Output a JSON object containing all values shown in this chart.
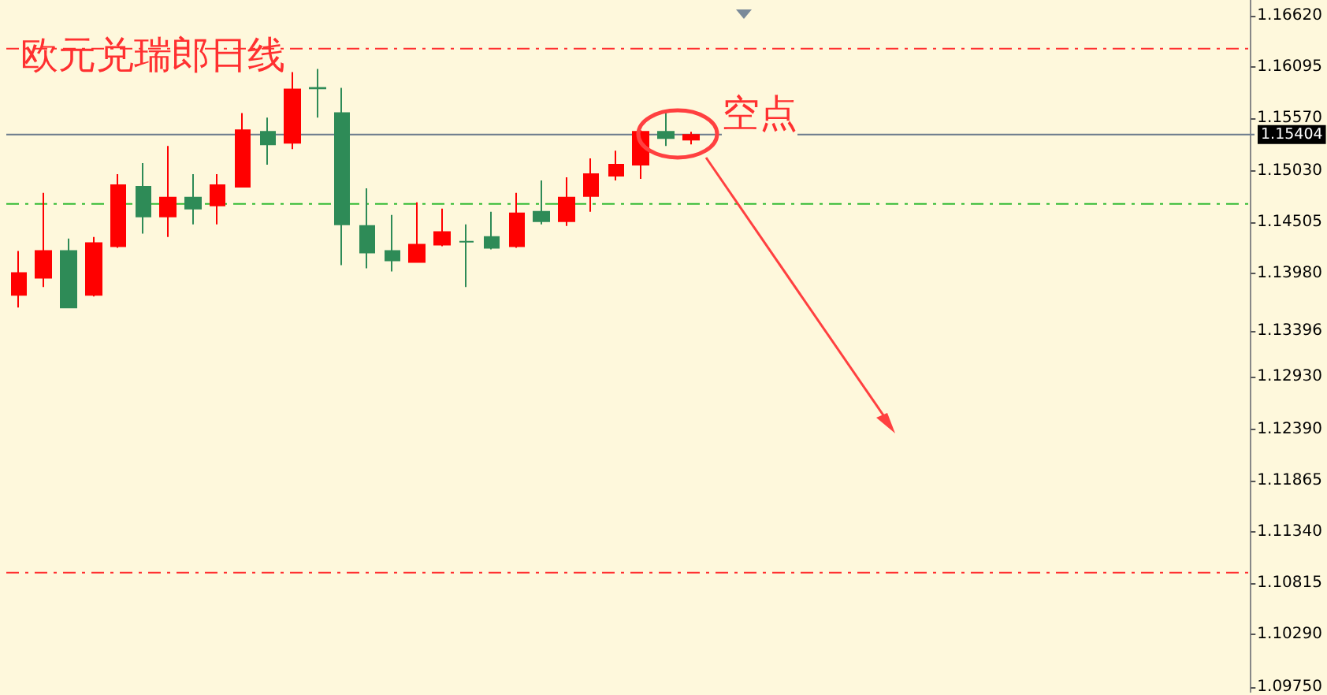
{
  "chart_data": {
    "type": "candlestick",
    "title": "欧元兑瑞郎日线",
    "annotations": [
      "空点"
    ],
    "categories": [
      null,
      null,
      null,
      null,
      null,
      null,
      null,
      null,
      null,
      null,
      null,
      null,
      null,
      null,
      null,
      null,
      null,
      null,
      null,
      null,
      null,
      null,
      null,
      null,
      null,
      null,
      null,
      null,
      null,
      null,
      null,
      null,
      null,
      null,
      null,
      null,
      null,
      null,
      null,
      null,
      null,
      null,
      null,
      null,
      null,
      null,
      null,
      null,
      null,
      null
    ],
    "ohlc": [
      [
        1.13763,
        1.14212,
        1.13634,
        1.13987
      ],
      [
        1.13939,
        1.14806,
        1.13843,
        1.14212
      ],
      [
        1.14212,
        1.1434,
        1.13634,
        1.13634
      ],
      [
        1.13763,
        1.14356,
        1.13747,
        1.14292
      ],
      [
        1.1426,
        1.14998,
        1.14244,
        1.14886
      ],
      [
        1.1487,
        1.15111,
        1.14389,
        1.14565
      ],
      [
        1.14565,
        1.15287,
        1.14356,
        1.14758
      ],
      [
        1.14758,
        1.14998,
        1.14485,
        1.14645
      ],
      [
        1.14677,
        1.14998,
        1.14485,
        1.14886
      ],
      [
        1.1487,
        1.15624,
        1.1487,
        1.15448
      ],
      [
        1.15432,
        1.15576,
        1.15095,
        1.15303
      ],
      [
        1.15319,
        1.16042,
        1.15255,
        1.15865
      ],
      [
        1.15881,
        1.16074,
        1.15576,
        1.15876
      ],
      [
        1.15624,
        1.15881,
        1.14068,
        1.14485
      ],
      [
        1.14469,
        1.14854,
        1.14035,
        1.14196
      ],
      [
        1.14212,
        1.14581,
        1.14003,
        1.14116
      ],
      [
        1.141,
        1.1471,
        1.141,
        1.14276
      ],
      [
        1.14276,
        1.14645,
        1.1426,
        1.14405
      ],
      [
        1.14308,
        1.14485,
        1.13843,
        1.14308
      ],
      [
        1.14356,
        1.14613,
        1.14228,
        1.14244
      ],
      [
        1.1426,
        1.14806,
        1.14244,
        1.14597
      ],
      [
        1.14613,
        1.14934,
        1.14485,
        1.14517
      ],
      [
        1.14517,
        1.14966,
        1.14469,
        1.14758
      ],
      [
        1.14774,
        1.15159,
        1.14613,
        1.14998
      ],
      [
        1.14982,
        1.15239,
        1.14934,
        1.15095
      ],
      [
        1.15095,
        1.15448,
        1.1495,
        1.15432
      ],
      [
        1.15432,
        1.1564,
        1.15287,
        1.15368
      ],
      [
        1.15352,
        1.15432,
        1.15303,
        1.154
      ],
      null,
      null,
      null,
      null,
      null,
      null,
      null,
      null,
      null,
      null,
      null,
      null,
      null,
      null,
      null,
      null,
      null,
      null,
      null,
      null,
      null,
      null
    ],
    "colors": [
      "#ff0000",
      "#ff0000",
      "#2e8b57",
      "#ff0000",
      "#ff0000",
      "#2e8b57",
      "#ff0000",
      "#2e8b57",
      "#ff0000",
      "#ff0000",
      "#2e8b57",
      "#ff0000",
      "#2e8b57",
      "#2e8b57",
      "#2e8b57",
      "#2e8b57",
      "#ff0000",
      "#ff0000",
      "#2e8b57",
      "#2e8b57",
      "#ff0000",
      "#2e8b57",
      "#ff0000",
      "#ff0000",
      "#ff0000",
      "#ff0000",
      "#2e8b57",
      "#ff0000",
      null,
      null,
      null,
      null,
      null,
      null,
      null,
      null,
      null,
      null,
      null,
      null,
      null,
      null,
      null,
      null,
      null,
      null,
      null,
      null,
      null,
      null
    ],
    "ylim": [
      1.097,
      1.1678
    ],
    "yticks": [
      {
        "value": 1.1662,
        "label": "1.16620"
      },
      {
        "value": 1.16095,
        "label": "1.16095"
      },
      {
        "value": 1.1557,
        "label": "1.15570"
      },
      {
        "value": 1.1503,
        "label": "1.15030"
      },
      {
        "value": 1.14505,
        "label": "1.14505"
      },
      {
        "value": 1.1398,
        "label": "1.13980"
      },
      {
        "value": 1.13396,
        "label": "1.13396"
      },
      {
        "value": 1.1293,
        "label": "1.12930"
      },
      {
        "value": 1.1239,
        "label": "1.12390"
      },
      {
        "value": 1.11865,
        "label": "1.11865"
      },
      {
        "value": 1.1134,
        "label": "1.11340"
      },
      {
        "value": 1.10815,
        "label": "1.10815"
      },
      {
        "value": 1.1029,
        "label": "1.10290"
      },
      {
        "value": 1.0975,
        "label": "1.09750"
      }
    ],
    "ref_lines": [
      {
        "axis": "y",
        "value": 1.15404,
        "label": "1.15404",
        "color": "#6b7b8c",
        "line_style": "solid"
      },
      {
        "axis": "y",
        "value": 1.16282,
        "color": "#ff3030",
        "line_style": "dashed"
      },
      {
        "axis": "y",
        "value": 1.14694,
        "color": "#33bb33",
        "line_style": "dashed"
      },
      {
        "axis": "y",
        "value": 1.10922,
        "color": "#ff3030",
        "line_style": "dashed"
      }
    ]
  }
}
